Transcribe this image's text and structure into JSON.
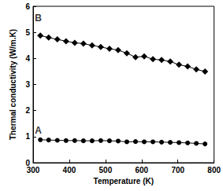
{
  "chart_data": {
    "type": "line",
    "x_label": "Temperature (K)",
    "y_label": "Thermal conductivity (W/m.K)",
    "xlim": [
      300,
      800
    ],
    "xticks": [
      300,
      400,
      500,
      600,
      700,
      800
    ],
    "ylim": [
      0,
      6
    ],
    "yticks": [
      0,
      1,
      2,
      3,
      4,
      5,
      6
    ],
    "grid": false,
    "series": [
      {
        "name": "A",
        "color": "#000000",
        "marker": "circle",
        "line_style": "solid",
        "x": [
          320,
          343,
          367,
          391,
          415,
          439,
          463,
          487,
          511,
          535,
          559,
          583,
          607,
          631,
          655,
          679,
          703,
          727,
          751,
          775
        ],
        "values": [
          0.88,
          0.87,
          0.86,
          0.85,
          0.85,
          0.84,
          0.84,
          0.85,
          0.84,
          0.83,
          0.8,
          0.81,
          0.8,
          0.8,
          0.79,
          0.78,
          0.77,
          0.76,
          0.74,
          0.72
        ]
      },
      {
        "name": "B",
        "color": "#000000",
        "marker": "diamond",
        "line_style": "solid",
        "x": [
          320,
          343,
          367,
          391,
          415,
          439,
          463,
          487,
          511,
          535,
          559,
          583,
          607,
          631,
          655,
          679,
          703,
          727,
          751,
          775
        ],
        "values": [
          4.88,
          4.8,
          4.73,
          4.66,
          4.6,
          4.57,
          4.5,
          4.44,
          4.37,
          4.32,
          4.2,
          4.05,
          4.08,
          3.97,
          3.94,
          3.88,
          3.76,
          3.69,
          3.58,
          3.5
        ]
      }
    ],
    "annotations": [
      {
        "text": "A",
        "x": 305,
        "y": 1.25
      },
      {
        "text": "B",
        "x": 305,
        "y": 5.55
      }
    ]
  }
}
